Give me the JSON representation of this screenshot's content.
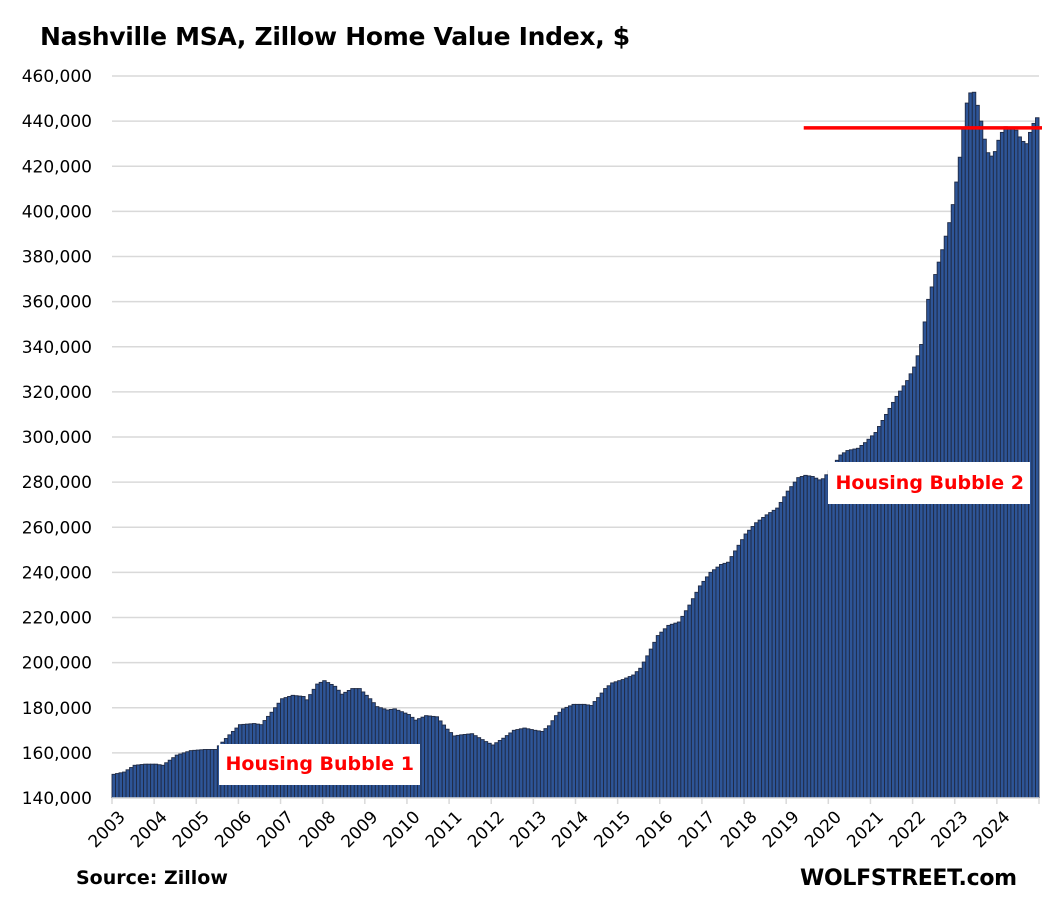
{
  "chart_data": {
    "type": "bar",
    "title": "Nashville MSA, Zillow Home Value Index, $",
    "xlabel": "",
    "ylabel": "",
    "ylim": [
      140000,
      460000
    ],
    "yticks": [
      "140,000",
      "160,000",
      "180,000",
      "200,000",
      "220,000",
      "240,000",
      "260,000",
      "280,000",
      "300,000",
      "320,000",
      "340,000",
      "360,000",
      "380,000",
      "400,000",
      "420,000",
      "440,000",
      "460,000"
    ],
    "ytick_values": [
      140000,
      160000,
      180000,
      200000,
      220000,
      240000,
      260000,
      280000,
      300000,
      320000,
      340000,
      360000,
      380000,
      400000,
      420000,
      440000,
      460000
    ],
    "xticks": [
      "2003",
      "2004",
      "2005",
      "2006",
      "2007",
      "2008",
      "2009",
      "2010",
      "2011",
      "2012",
      "2013",
      "2014",
      "2015",
      "2016",
      "2017",
      "2018",
      "2019",
      "2020",
      "2021",
      "2022",
      "2023",
      "2024"
    ],
    "grid": true,
    "frequency": "monthly",
    "start": "2003-01",
    "end": "2024-12",
    "bar_color": "#2e5597",
    "bar_edge_color": "#1f2a44",
    "anchors": [
      [
        0,
        150500
      ],
      [
        3,
        151500
      ],
      [
        6,
        154500
      ],
      [
        9,
        155000
      ],
      [
        12,
        155000
      ],
      [
        14,
        154500
      ],
      [
        18,
        159000
      ],
      [
        22,
        161000
      ],
      [
        26,
        161500
      ],
      [
        29,
        161500
      ],
      [
        33,
        168000
      ],
      [
        36,
        172500
      ],
      [
        40,
        173000
      ],
      [
        42,
        172500
      ],
      [
        45,
        178000
      ],
      [
        48,
        184000
      ],
      [
        51,
        185500
      ],
      [
        54,
        185000
      ],
      [
        55,
        183500
      ],
      [
        58,
        190500
      ],
      [
        60,
        192000
      ],
      [
        63,
        189500
      ],
      [
        65,
        186000
      ],
      [
        68,
        188500
      ],
      [
        70,
        188500
      ],
      [
        73,
        184000
      ],
      [
        75,
        180500
      ],
      [
        78,
        179000
      ],
      [
        80,
        179500
      ],
      [
        84,
        177000
      ],
      [
        86,
        174500
      ],
      [
        89,
        176500
      ],
      [
        92,
        176000
      ],
      [
        95,
        170500
      ],
      [
        97,
        167500
      ],
      [
        99,
        168000
      ],
      [
        102,
        168500
      ],
      [
        106,
        165000
      ],
      [
        108,
        163500
      ],
      [
        111,
        166500
      ],
      [
        114,
        170000
      ],
      [
        117,
        171000
      ],
      [
        120,
        170000
      ],
      [
        122,
        169500
      ],
      [
        124,
        172000
      ],
      [
        126,
        176500
      ],
      [
        128,
        179500
      ],
      [
        131,
        181500
      ],
      [
        134,
        181500
      ],
      [
        136,
        181000
      ],
      [
        138,
        184500
      ],
      [
        140,
        188500
      ],
      [
        142,
        191000
      ],
      [
        145,
        192500
      ],
      [
        148,
        194500
      ],
      [
        150,
        197500
      ],
      [
        152,
        203000
      ],
      [
        155,
        212000
      ],
      [
        158,
        216500
      ],
      [
        161,
        218000
      ],
      [
        164,
        225500
      ],
      [
        167,
        234000
      ],
      [
        170,
        240000
      ],
      [
        173,
        243500
      ],
      [
        175,
        244500
      ],
      [
        177,
        249500
      ],
      [
        180,
        257000
      ],
      [
        183,
        262000
      ],
      [
        186,
        265500
      ],
      [
        189,
        268500
      ],
      [
        192,
        276000
      ],
      [
        195,
        282000
      ],
      [
        197,
        283000
      ],
      [
        199,
        282500
      ],
      [
        201,
        281000
      ],
      [
        202,
        281500
      ],
      [
        204,
        285000
      ],
      [
        207,
        292000
      ],
      [
        209,
        294000
      ],
      [
        212,
        295000
      ],
      [
        214,
        297500
      ],
      [
        217,
        302000
      ],
      [
        220,
        310000
      ],
      [
        223,
        318000
      ],
      [
        226,
        325000
      ],
      [
        228,
        331000
      ],
      [
        230,
        341000
      ],
      [
        232,
        361000
      ],
      [
        234,
        372000
      ],
      [
        236,
        383000
      ],
      [
        238,
        395000
      ],
      [
        239,
        403000
      ],
      [
        240,
        413000
      ],
      [
        241,
        424000
      ],
      [
        242,
        437000
      ],
      [
        243,
        448000
      ],
      [
        244,
        452500
      ],
      [
        245,
        452800
      ],
      [
        246,
        447000
      ],
      [
        247,
        440000
      ],
      [
        248,
        432000
      ],
      [
        249,
        426000
      ],
      [
        250,
        424500
      ],
      [
        251,
        426500
      ],
      [
        252,
        431500
      ],
      [
        253,
        435000
      ],
      [
        254,
        437500
      ],
      [
        255,
        437000
      ],
      [
        256,
        437000
      ],
      [
        257,
        436000
      ],
      [
        258,
        433000
      ],
      [
        259,
        431000
      ],
      [
        260,
        430000
      ],
      [
        261,
        435000
      ],
      [
        262,
        439000
      ],
      [
        263,
        441500
      ]
    ],
    "tail": [
      443000,
      442000,
      441000,
      439500,
      438500,
      437500
    ],
    "reference_line": {
      "value": 437000,
      "color": "#ff0000",
      "x_start": "2019-06"
    },
    "annotations": [
      {
        "text": "Housing Bubble 1",
        "color": "#ff0000"
      },
      {
        "text": "Housing Bubble 2",
        "color": "#ff0000"
      }
    ]
  },
  "footer": {
    "source": "Source: Zillow",
    "brand": "WOLFSTREET.com"
  }
}
